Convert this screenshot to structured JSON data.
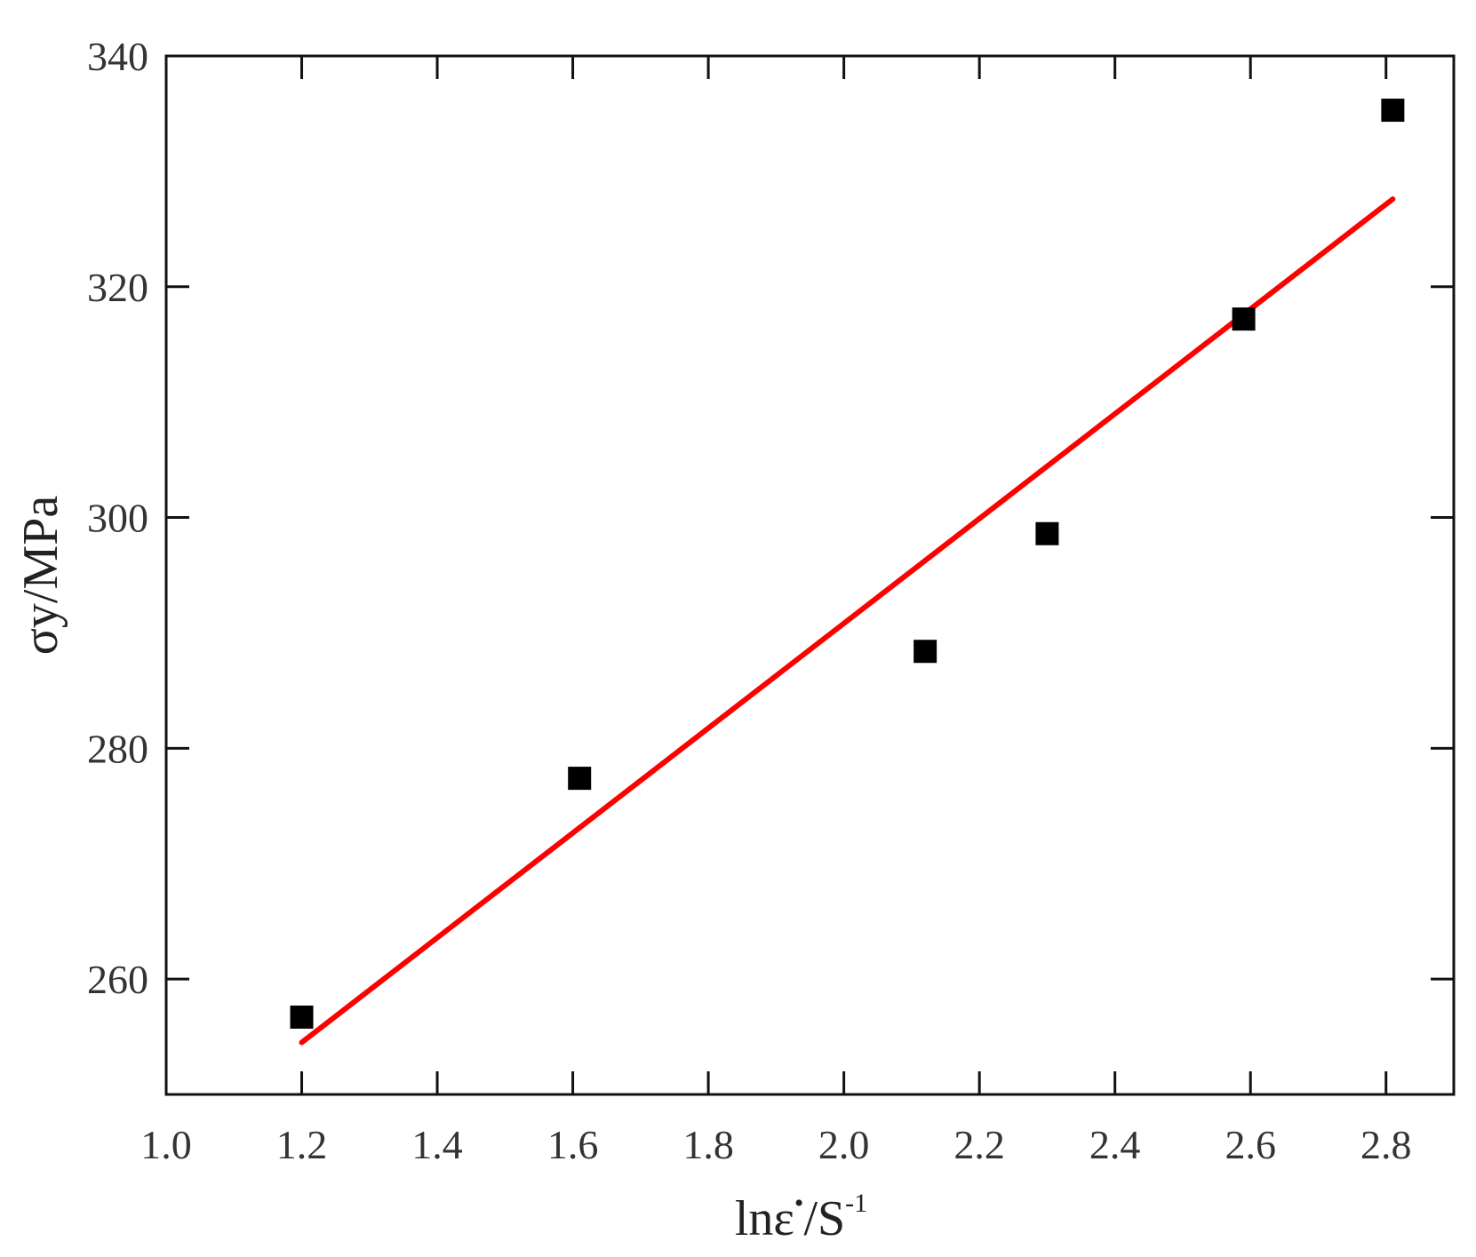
{
  "chart_data": {
    "type": "scatter",
    "title": "",
    "xlabel_main": "lnε",
    "xlabel_sup1": "•",
    "xlabel_mid": "/S",
    "xlabel_sup2": "-1",
    "ylabel": "σy/MPa",
    "xlim": [
      1.0,
      2.9
    ],
    "ylim": [
      250,
      340
    ],
    "xticks": [
      1.0,
      1.2,
      1.4,
      1.6,
      1.8,
      2.0,
      2.2,
      2.4,
      2.6,
      2.8
    ],
    "xtick_labels": [
      "1.0",
      "1.2",
      "1.4",
      "1.6",
      "1.8",
      "2.0",
      "2.2",
      "2.4",
      "2.6",
      "2.8"
    ],
    "yticks": [
      260,
      280,
      300,
      320,
      340
    ],
    "ytick_labels": [
      "260",
      "280",
      "300",
      "320",
      "340"
    ],
    "grid": false,
    "series": [
      {
        "type": "scatter",
        "marker": "square",
        "color": "#000000",
        "x": [
          1.2,
          1.61,
          2.12,
          2.3,
          2.59,
          2.81
        ],
        "y": [
          256.7,
          277.4,
          288.4,
          298.6,
          317.2,
          335.3
        ]
      },
      {
        "type": "line",
        "color": "#ff0000",
        "x": [
          1.2,
          2.81
        ],
        "y": [
          254.5,
          327.6
        ]
      }
    ]
  }
}
